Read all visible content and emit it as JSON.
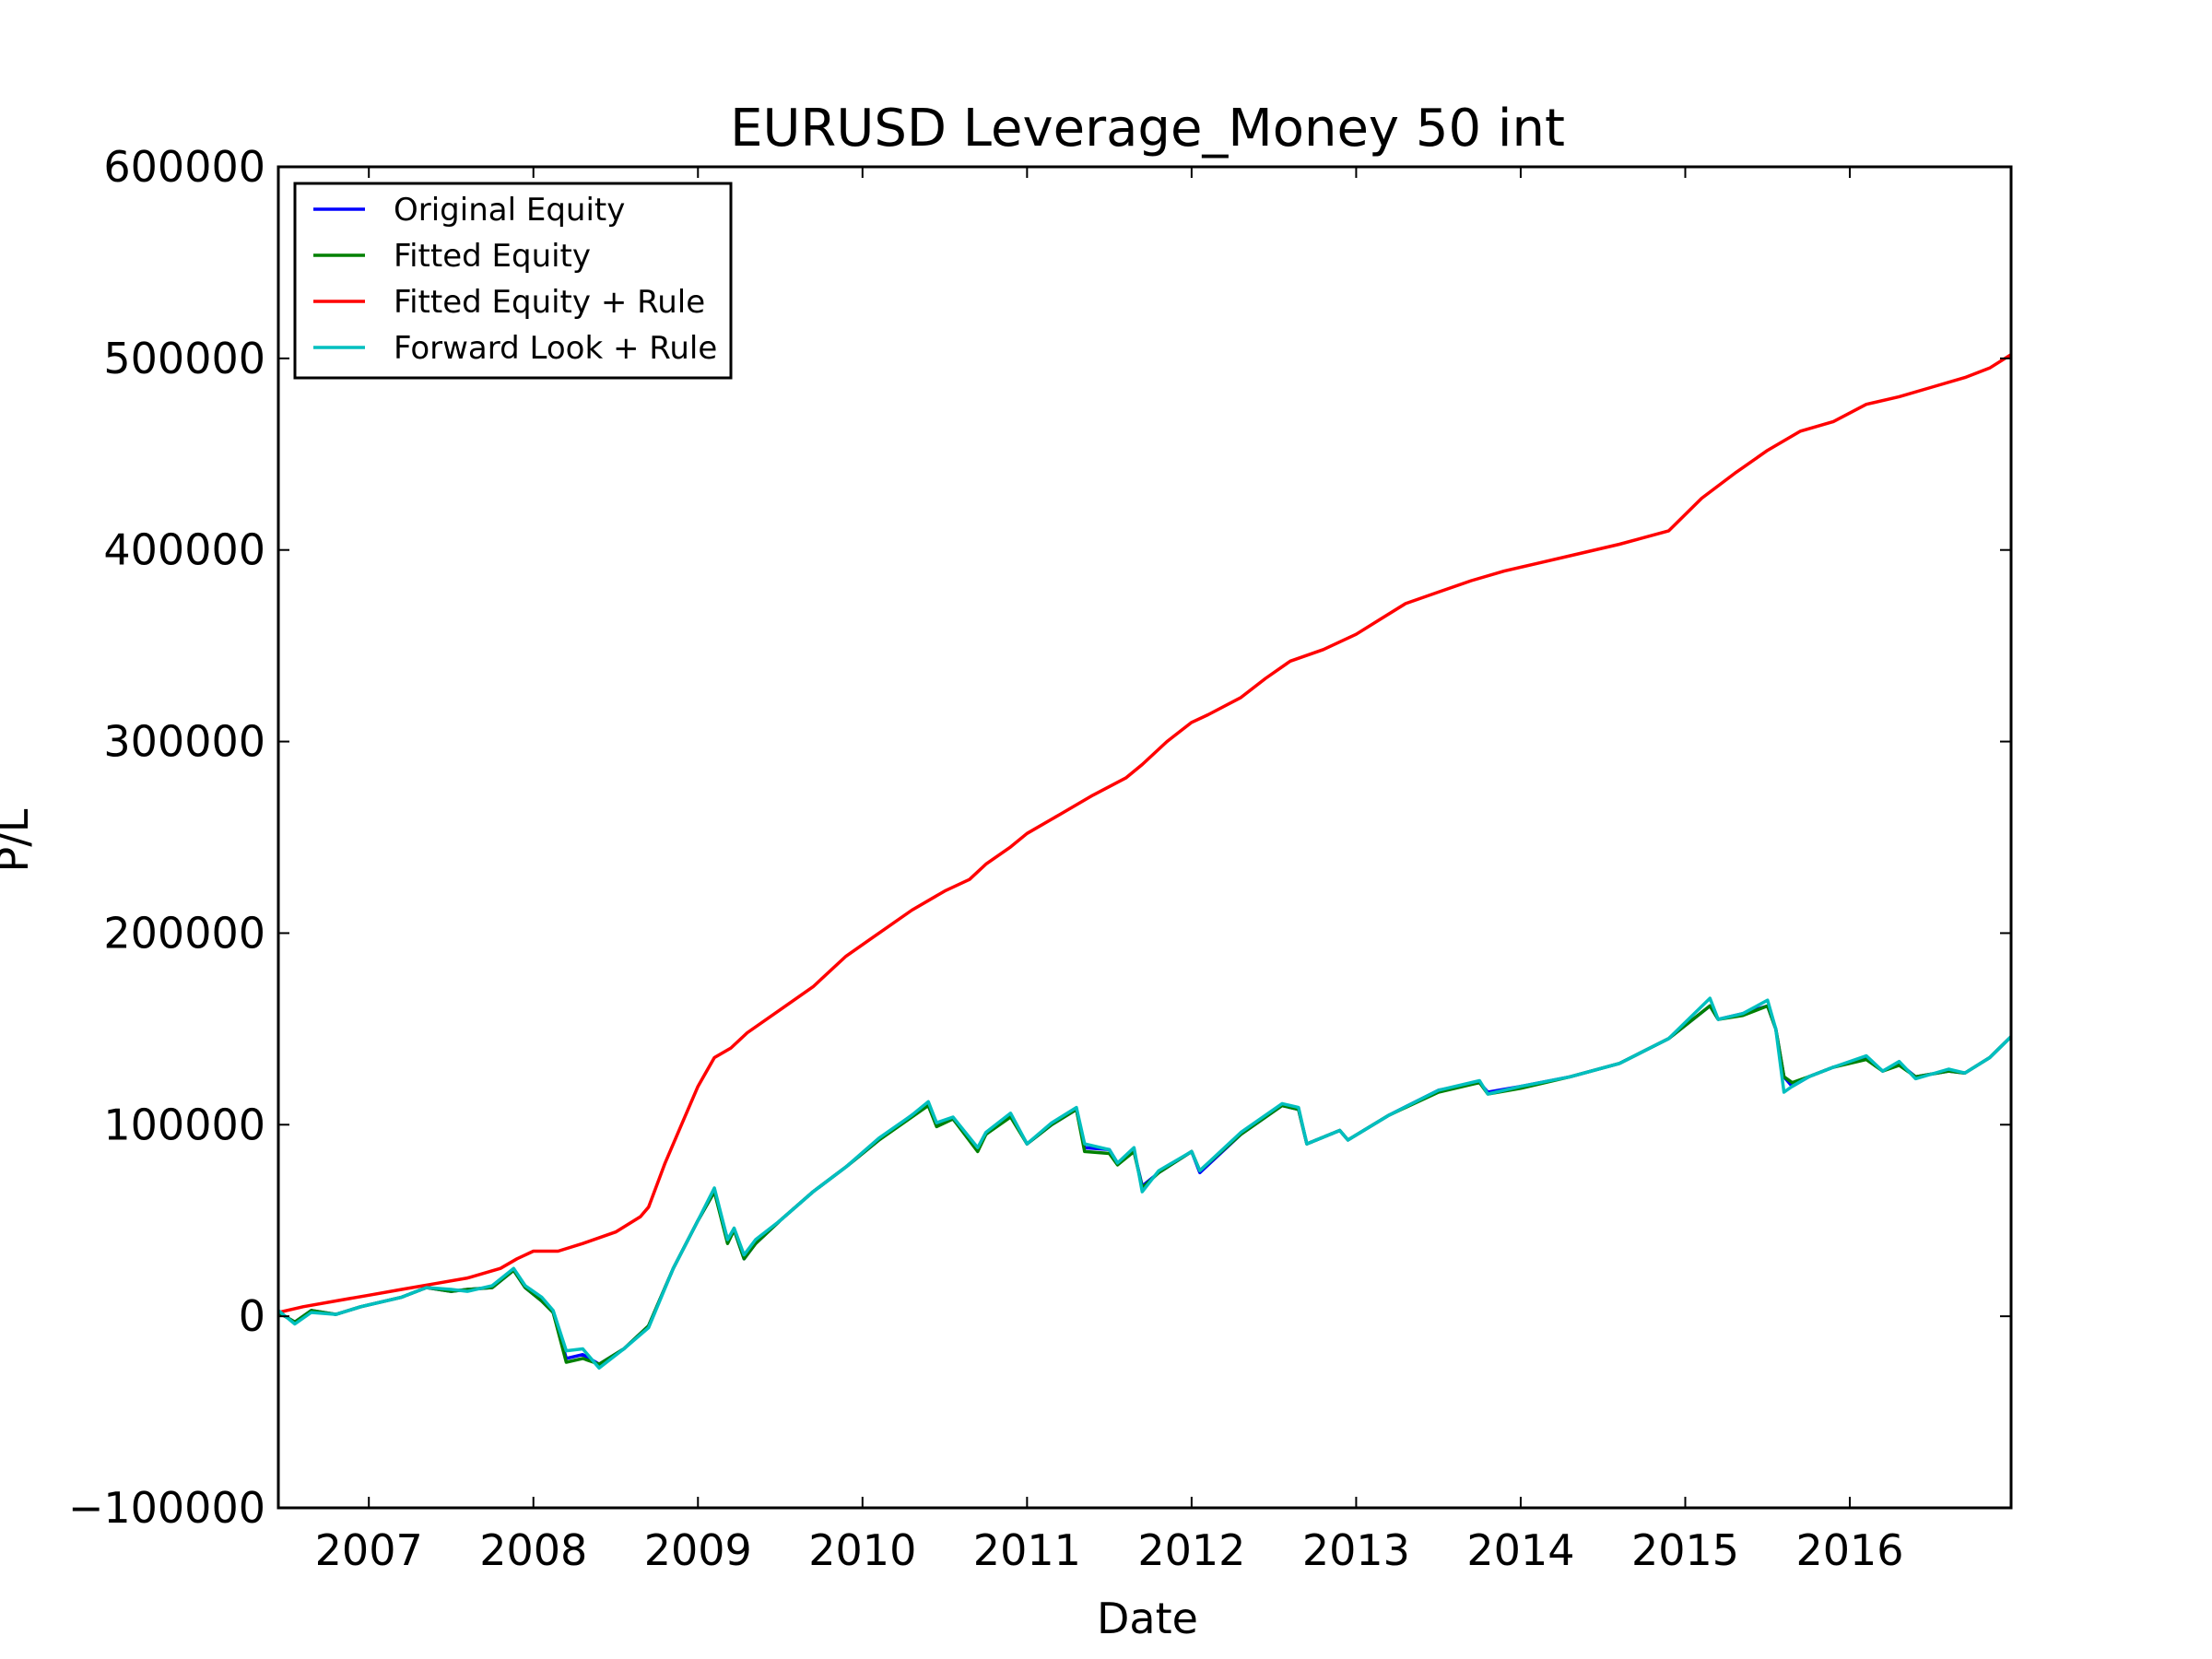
{
  "chart_data": {
    "type": "line",
    "title": "EURUSD Leverage_Money 50 int",
    "xlabel": "Date",
    "ylabel": "P/L",
    "xlim": [
      2006.45,
      2016.98
    ],
    "ylim": [
      -100000,
      600000
    ],
    "xticks": [
      2007,
      2008,
      2009,
      2010,
      2011,
      2012,
      2013,
      2014,
      2015,
      2016
    ],
    "xtick_labels": [
      "2007",
      "2008",
      "2009",
      "2010",
      "2011",
      "2012",
      "2013",
      "2014",
      "2015",
      "2016"
    ],
    "yticks": [
      -100000,
      0,
      100000,
      200000,
      300000,
      400000,
      500000,
      600000
    ],
    "ytick_labels": [
      "−100000",
      "0",
      "100000",
      "200000",
      "300000",
      "400000",
      "500000",
      "600000"
    ],
    "grid": false,
    "legend_position": "upper-left",
    "series": [
      {
        "name": "Original Equity",
        "color": "#0000ff",
        "x": [
          2006.45,
          2006.55,
          2006.65,
          2006.8,
          2006.95,
          2007.2,
          2007.35,
          2007.5,
          2007.6,
          2007.75,
          2007.88,
          2007.95,
          2008.05,
          2008.12,
          2008.2,
          2008.3,
          2008.4,
          2008.55,
          2008.7,
          2008.85,
          2009.0,
          2009.1,
          2009.18,
          2009.22,
          2009.28,
          2009.35,
          2009.5,
          2009.7,
          2009.9,
          2010.1,
          2010.3,
          2010.4,
          2010.45,
          2010.55,
          2010.7,
          2010.75,
          2010.9,
          2011.0,
          2011.15,
          2011.3,
          2011.35,
          2011.5,
          2011.55,
          2011.65,
          2011.7,
          2011.8,
          2012.0,
          2012.05,
          2012.3,
          2012.55,
          2012.65,
          2012.7,
          2012.9,
          2012.95,
          2013.2,
          2013.5,
          2013.75,
          2013.8,
          2014.0,
          2014.3,
          2014.6,
          2014.9,
          2015.15,
          2015.2,
          2015.35,
          2015.5,
          2015.55,
          2015.6,
          2015.65,
          2015.75,
          2015.9,
          2016.1,
          2016.2,
          2016.3,
          2016.4,
          2016.6,
          2016.7,
          2016.85,
          2016.98
        ],
        "y": [
          2000,
          -3000,
          3000,
          1000,
          5000,
          10000,
          15000,
          13000,
          14000,
          15000,
          24000,
          15000,
          8000,
          2000,
          -22000,
          -20000,
          -25000,
          -17000,
          -5000,
          25000,
          50000,
          65000,
          40000,
          45000,
          30000,
          38000,
          50000,
          65000,
          78000,
          92000,
          105000,
          110000,
          100000,
          103000,
          87000,
          95000,
          105000,
          90000,
          100000,
          108000,
          88000,
          87000,
          80000,
          86000,
          68000,
          75000,
          86000,
          75000,
          95000,
          110000,
          108000,
          90000,
          97000,
          92000,
          105000,
          118000,
          122000,
          117000,
          120000,
          125000,
          132000,
          145000,
          162000,
          155000,
          158000,
          162000,
          150000,
          125000,
          120000,
          125000,
          130000,
          135000,
          128000,
          132000,
          125000,
          128000,
          127000,
          135000,
          146000
        ]
      },
      {
        "name": "Fitted Equity",
        "color": "#008000",
        "x": [
          2006.45,
          2006.55,
          2006.65,
          2006.8,
          2006.95,
          2007.2,
          2007.35,
          2007.5,
          2007.6,
          2007.75,
          2007.88,
          2007.95,
          2008.05,
          2008.12,
          2008.2,
          2008.3,
          2008.4,
          2008.55,
          2008.7,
          2008.85,
          2009.0,
          2009.1,
          2009.18,
          2009.22,
          2009.28,
          2009.35,
          2009.5,
          2009.7,
          2009.9,
          2010.1,
          2010.3,
          2010.4,
          2010.45,
          2010.55,
          2010.7,
          2010.75,
          2010.9,
          2011.0,
          2011.15,
          2011.3,
          2011.35,
          2011.5,
          2011.55,
          2011.65,
          2011.7,
          2011.8,
          2012.0,
          2012.05,
          2012.3,
          2012.55,
          2012.65,
          2012.7,
          2012.9,
          2012.95,
          2013.2,
          2013.5,
          2013.75,
          2013.8,
          2014.0,
          2014.3,
          2014.6,
          2014.9,
          2015.15,
          2015.2,
          2015.35,
          2015.5,
          2015.55,
          2015.6,
          2015.65,
          2015.75,
          2015.9,
          2016.1,
          2016.2,
          2016.3,
          2016.4,
          2016.6,
          2016.7,
          2016.85,
          2016.98
        ],
        "y": [
          2000,
          -3000,
          3000,
          1000,
          5000,
          10000,
          15000,
          13000,
          14000,
          15000,
          24000,
          15000,
          8000,
          2000,
          -24000,
          -22000,
          -25000,
          -17000,
          -5000,
          25000,
          50000,
          65000,
          38000,
          45000,
          30000,
          38000,
          50000,
          65000,
          78000,
          92000,
          104000,
          110000,
          99000,
          103000,
          86000,
          95000,
          104000,
          90000,
          100000,
          108000,
          86000,
          85000,
          79000,
          86000,
          67000,
          75000,
          86000,
          76000,
          95000,
          110000,
          108000,
          90000,
          97000,
          92000,
          105000,
          117000,
          122000,
          116000,
          119000,
          125000,
          132000,
          145000,
          162000,
          155000,
          157000,
          162000,
          150000,
          125000,
          122000,
          125000,
          130000,
          134000,
          128000,
          131000,
          125000,
          128000,
          127000,
          135000,
          146000
        ]
      },
      {
        "name": "Fitted Equity + Rule",
        "color": "#ff0000",
        "x": [
          2006.45,
          2006.6,
          2006.8,
          2007.0,
          2007.2,
          2007.4,
          2007.6,
          2007.8,
          2007.9,
          2008.0,
          2008.15,
          2008.3,
          2008.5,
          2008.65,
          2008.7,
          2008.8,
          2008.9,
          2009.0,
          2009.1,
          2009.2,
          2009.3,
          2009.5,
          2009.7,
          2009.9,
          2010.1,
          2010.3,
          2010.5,
          2010.65,
          2010.75,
          2010.9,
          2011.0,
          2011.2,
          2011.4,
          2011.6,
          2011.7,
          2011.85,
          2012.0,
          2012.1,
          2012.3,
          2012.45,
          2012.6,
          2012.8,
          2013.0,
          2013.15,
          2013.3,
          2013.5,
          2013.7,
          2013.9,
          2014.1,
          2014.3,
          2014.6,
          2014.9,
          2015.1,
          2015.3,
          2015.5,
          2015.7,
          2015.9,
          2016.1,
          2016.3,
          2016.5,
          2016.7,
          2016.85,
          2016.98
        ],
        "y": [
          2000,
          5000,
          8000,
          11000,
          14000,
          17000,
          20000,
          25000,
          30000,
          34000,
          34000,
          38000,
          44000,
          52000,
          57000,
          80000,
          100000,
          120000,
          135000,
          140000,
          148000,
          160000,
          172000,
          188000,
          200000,
          212000,
          222000,
          228000,
          236000,
          245000,
          252000,
          262000,
          272000,
          281000,
          288000,
          300000,
          310000,
          314000,
          323000,
          333000,
          342000,
          348000,
          356000,
          364000,
          372000,
          378000,
          384000,
          389000,
          393000,
          397000,
          403000,
          410000,
          427000,
          440000,
          452000,
          462000,
          467000,
          476000,
          480000,
          485000,
          490000,
          495000,
          502000
        ]
      },
      {
        "name": "Forward Look + Rule",
        "color": "#00bfbf",
        "x": [
          2006.45,
          2006.55,
          2006.65,
          2006.8,
          2006.95,
          2007.2,
          2007.35,
          2007.5,
          2007.6,
          2007.75,
          2007.88,
          2007.95,
          2008.05,
          2008.12,
          2008.2,
          2008.3,
          2008.4,
          2008.55,
          2008.7,
          2008.85,
          2009.0,
          2009.1,
          2009.18,
          2009.22,
          2009.28,
          2009.35,
          2009.5,
          2009.7,
          2009.9,
          2010.1,
          2010.3,
          2010.4,
          2010.45,
          2010.55,
          2010.7,
          2010.75,
          2010.9,
          2011.0,
          2011.15,
          2011.3,
          2011.35,
          2011.5,
          2011.55,
          2011.65,
          2011.7,
          2011.8,
          2012.0,
          2012.05,
          2012.3,
          2012.55,
          2012.65,
          2012.7,
          2012.9,
          2012.95,
          2013.2,
          2013.5,
          2013.75,
          2013.8,
          2014.0,
          2014.3,
          2014.6,
          2014.9,
          2015.15,
          2015.2,
          2015.35,
          2015.5,
          2015.55,
          2015.6,
          2015.65,
          2015.75,
          2015.9,
          2016.1,
          2016.2,
          2016.3,
          2016.4,
          2016.6,
          2016.7,
          2016.85,
          2016.98
        ],
        "y": [
          3000,
          -4000,
          2000,
          1000,
          5000,
          10000,
          15000,
          14000,
          13000,
          16000,
          25000,
          16000,
          10000,
          3000,
          -18000,
          -17000,
          -27000,
          -17000,
          -6000,
          25000,
          50000,
          67000,
          40000,
          46000,
          32000,
          40000,
          50000,
          65000,
          78000,
          93000,
          105000,
          112000,
          101000,
          104000,
          88000,
          96000,
          106000,
          90000,
          101000,
          109000,
          90000,
          87000,
          80000,
          88000,
          65000,
          76000,
          86000,
          76000,
          96000,
          111000,
          109000,
          90000,
          97000,
          92000,
          105000,
          118000,
          123000,
          116000,
          120000,
          125000,
          132000,
          145000,
          166000,
          155000,
          158000,
          165000,
          150000,
          117000,
          120000,
          125000,
          130000,
          136000,
          128000,
          133000,
          124000,
          129000,
          127000,
          135000,
          146000
        ]
      }
    ]
  }
}
